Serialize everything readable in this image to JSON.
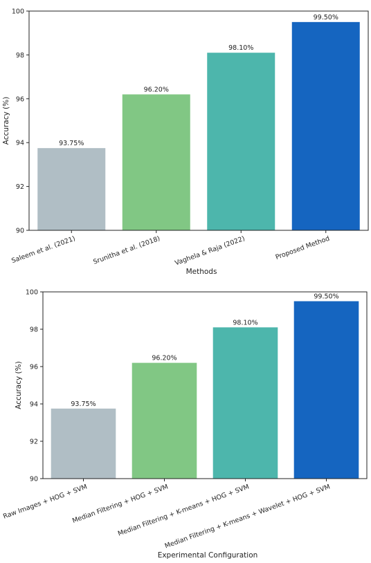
{
  "chart_data": [
    {
      "type": "bar",
      "categories": [
        "Saleem et al. (2021)",
        "Srunitha et al. (2018)",
        "Vaghela & Raja (2022)",
        "Proposed Method"
      ],
      "values": [
        93.75,
        96.2,
        98.1,
        99.5
      ],
      "bar_labels": [
        "93.75%",
        "96.20%",
        "98.10%",
        "99.50%"
      ],
      "colors": [
        "#b0bec5",
        "#81c784",
        "#4db6ac",
        "#1565c0"
      ],
      "xlabel": "Methods",
      "ylabel": "Accuracy (%)",
      "ylim": [
        90,
        100
      ],
      "yticks": [
        90,
        92,
        94,
        96,
        98,
        100
      ],
      "grid": false,
      "legend": "none"
    },
    {
      "type": "bar",
      "categories": [
        "Raw Images + HOG + SVM",
        "Median Filtering + HOG + SVM",
        "Median Filtering + K-means + HOG + SVM",
        "Median Filtering + K-means + Wavelet + HOG + SVM"
      ],
      "values": [
        93.75,
        96.2,
        98.1,
        99.5
      ],
      "bar_labels": [
        "93.75%",
        "96.20%",
        "98.10%",
        "99.50%"
      ],
      "colors": [
        "#b0bec5",
        "#81c784",
        "#4db6ac",
        "#1565c0"
      ],
      "xlabel": "Experimental Configuration",
      "ylabel": "Accuracy (%)",
      "ylim": [
        90,
        100
      ],
      "yticks": [
        90,
        92,
        94,
        96,
        98,
        100
      ],
      "grid": false,
      "legend": "none"
    }
  ]
}
